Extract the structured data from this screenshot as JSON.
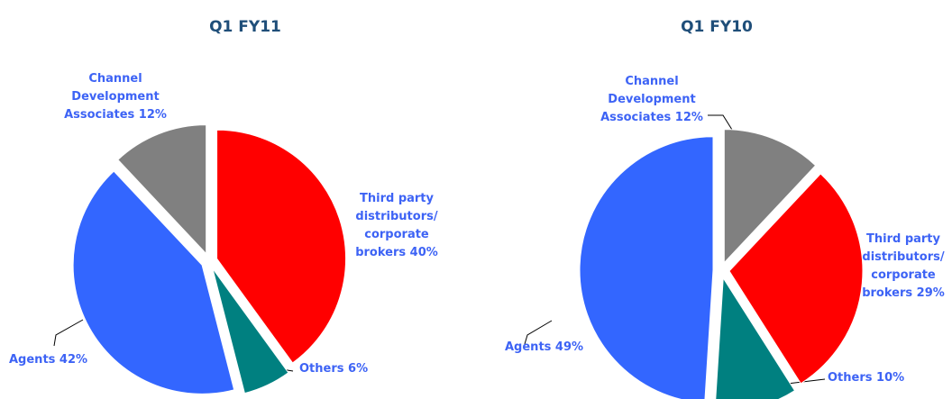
{
  "chart_data": [
    {
      "type": "pie",
      "title": "Q1 FY11",
      "categories": [
        "Third party distributors/ corporate brokers",
        "Others",
        "Agents",
        "Channel Development Associates"
      ],
      "values": [
        40,
        6,
        42,
        12
      ],
      "value_labels": [
        "40%",
        "6%",
        "42%",
        "12%"
      ],
      "colors": [
        "#ff0000",
        "#008080",
        "#3366ff",
        "#808080"
      ]
    },
    {
      "type": "pie",
      "title": "Q1 FY10",
      "categories": [
        "Channel Development Associates",
        "Third party distributors/ corporate brokers",
        "Others",
        "Agents"
      ],
      "values": [
        12,
        29,
        10,
        49
      ],
      "value_labels": [
        "12%",
        "29%",
        "10%",
        "49%"
      ],
      "colors": [
        "#808080",
        "#ff0000",
        "#008080",
        "#3366ff"
      ]
    }
  ]
}
